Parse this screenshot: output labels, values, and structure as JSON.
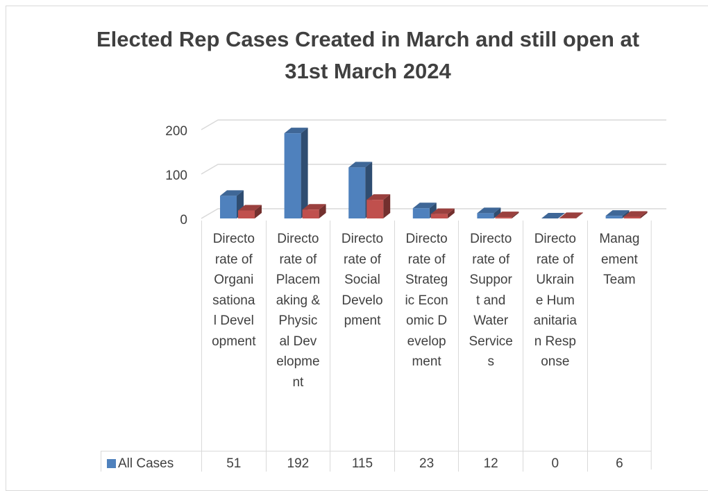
{
  "chart_data": {
    "type": "bar3d",
    "title": "Elected Rep Cases Created in March and still open at 31st March 2024",
    "categories": [
      "Directorate of Organisational Development",
      "Directorate of Placemaking & Physical Development",
      "Directorate of Social Development",
      "Directorate of Strategic Economic Development",
      "Directorate of Support and Water Services",
      "Directorate of Ukraine Humanitarian Response",
      "Management Team"
    ],
    "series": [
      {
        "name": "All Cases",
        "color": "#4f81bd",
        "values": [
          51,
          192,
          115,
          23,
          12,
          0,
          6
        ]
      },
      {
        "color": "#c0504d",
        "values": [
          18,
          20,
          42,
          10,
          3,
          1,
          4
        ]
      }
    ],
    "ylim": [
      0,
      200
    ],
    "yticks": [
      0,
      100,
      200
    ],
    "grid": true
  }
}
